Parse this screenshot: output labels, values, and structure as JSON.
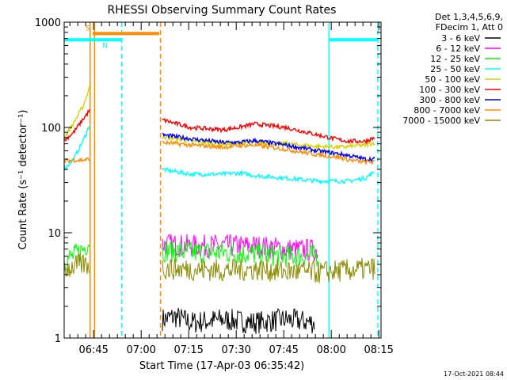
{
  "chart_data": {
    "type": "line",
    "title": "RHESSI Observing Summary Count Rates",
    "xlabel": "Start Time (17-Apr-03 06:35:42)",
    "ylabel": "Count Rate (s⁻¹ detector⁻¹)",
    "yscale": "log",
    "ylim": [
      1,
      1000
    ],
    "xlim_minutes": [
      0,
      100
    ],
    "x_tick_labels": [
      {
        "label": "06:45",
        "minute": 9.3
      },
      {
        "label": "07:00",
        "minute": 24.3
      },
      {
        "label": "07:15",
        "minute": 39.3
      },
      {
        "label": "07:30",
        "minute": 54.3
      },
      {
        "label": "07:45",
        "minute": 69.3
      },
      {
        "label": "08:00",
        "minute": 84.3
      },
      {
        "label": "08:15",
        "minute": 99.3
      }
    ],
    "y_tick_labels": [
      {
        "label": "1",
        "value": 1
      },
      {
        "label": "10",
        "value": 10
      },
      {
        "label": "100",
        "value": 100
      },
      {
        "label": "1000",
        "value": 1000
      }
    ],
    "legend_header": [
      "Det 1,3,4,5,6,9,",
      "FDecim 1, Att 0"
    ],
    "legend_placement": "right",
    "series": [
      {
        "name": "3 - 6 keV",
        "color": "#000000",
        "segments": [
          {
            "x": [
              31,
              35,
              40,
              50,
              60,
              70,
              79
            ],
            "y": [
              1.5,
              1.6,
              1.4,
              1.5,
              1.4,
              1.5,
              1.4
            ],
            "noisy": true
          }
        ]
      },
      {
        "name": "6 - 12 keV",
        "color": "#ff00ff",
        "segments": [
          {
            "x": [
              31,
              40,
              50,
              60,
              70,
              80
            ],
            "y": [
              7.8,
              7.5,
              7.5,
              7.5,
              7.0,
              6.8
            ],
            "noisy": true
          }
        ]
      },
      {
        "name": "12 - 25 keV",
        "color": "#00ff00",
        "segments": [
          {
            "x": [
              0,
              3,
              6,
              8
            ],
            "y": [
              5.5,
              6.0,
              7.0,
              8.5
            ],
            "noisy": true
          },
          {
            "x": [
              31,
              40,
              50,
              60,
              70,
              80
            ],
            "y": [
              6.8,
              6.5,
              6.5,
              6.3,
              6.0,
              6.0
            ],
            "noisy": true
          }
        ]
      },
      {
        "name": "25 - 50 keV",
        "color": "#00ffff",
        "segments": [
          {
            "x": [
              0,
              3,
              6,
              8
            ],
            "y": [
              40,
              50,
              75,
              105
            ]
          },
          {
            "x": [
              31,
              40,
              50,
              55,
              60,
              70,
              80,
              87,
              90,
              95,
              98
            ],
            "y": [
              40,
              36,
              36,
              37,
              35,
              33,
              31,
              31,
              31,
              33,
              38
            ]
          }
        ]
      },
      {
        "name": "50 - 100 keV",
        "color": "#d4d400",
        "segments": [
          {
            "x": [
              0,
              3,
              6,
              8
            ],
            "y": [
              80,
              110,
              160,
              240
            ]
          },
          {
            "x": [
              31,
              40,
              50,
              55,
              60,
              70,
              80,
              87,
              90,
              95,
              98
            ],
            "y": [
              82,
              74,
              70,
              70,
              72,
              70,
              66,
              65,
              66,
              68,
              72
            ]
          }
        ]
      },
      {
        "name": "100 - 300 keV",
        "color": "#ff0000",
        "segments": [
          {
            "x": [
              0,
              3,
              6,
              8
            ],
            "y": [
              75,
              90,
              120,
              145
            ]
          },
          {
            "x": [
              31,
              40,
              50,
              55,
              60,
              70,
              80,
              87,
              90,
              95,
              98
            ],
            "y": [
              118,
              100,
              95,
              100,
              108,
              100,
              85,
              76,
              74,
              74,
              80
            ]
          }
        ]
      },
      {
        "name": "300 - 800 keV",
        "color": "#0000ff",
        "segments": [
          {
            "x": [
              31,
              40,
              50,
              55,
              60,
              70,
              80,
              87,
              90,
              95,
              98
            ],
            "y": [
              85,
              78,
              72,
              72,
              75,
              68,
              60,
              56,
              54,
              50,
              50
            ]
          }
        ]
      },
      {
        "name": "800 - 7000 keV",
        "color": "#ff8c00",
        "segments": [
          {
            "x": [
              0,
              3,
              6,
              8
            ],
            "y": [
              48,
              49,
              49,
              50
            ]
          },
          {
            "x": [
              31,
              40,
              50,
              55,
              60,
              70,
              80,
              87,
              90,
              95,
              98
            ],
            "y": [
              72,
              68,
              65,
              67,
              68,
              62,
              55,
              52,
              49,
              47,
              47
            ]
          }
        ]
      },
      {
        "name": "7000 - 15000 keV",
        "color": "#8b8b00",
        "segments": [
          {
            "x": [
              0,
              3,
              6,
              8
            ],
            "y": [
              4.5,
              4.8,
              5.0,
              5.0
            ],
            "noisy": true
          },
          {
            "x": [
              31,
              40,
              50,
              60,
              70,
              80,
              90,
              98
            ],
            "y": [
              4.6,
              4.5,
              4.4,
              4.5,
              4.3,
              4.2,
              4.4,
              4.6
            ],
            "noisy": true
          }
        ]
      }
    ],
    "flag_bars": [
      {
        "label": "S",
        "color": "#ff8c00",
        "label_color": "#ff8c00",
        "x": [
          9,
          30
        ],
        "y": 780
      },
      {
        "label": "N",
        "color": "#00ffff",
        "label_color": "#00ffff",
        "x": [
          0,
          18
        ],
        "y": 680
      },
      {
        "label": "",
        "color": "#00ffff",
        "label_color": "#00ffff",
        "x": [
          83.5,
          99
        ],
        "y": 680
      }
    ],
    "markers": [
      {
        "x": 8.2,
        "color": "#ff8c00",
        "style": "solid"
      },
      {
        "x": 9.6,
        "color": "#ff8c00",
        "style": "solid"
      },
      {
        "x": 30.4,
        "color": "#ff8c00",
        "style": "dashed"
      },
      {
        "x": 18.2,
        "color": "#00ffff",
        "style": "dashed"
      },
      {
        "x": 83.6,
        "color": "#00ffff",
        "style": "solid"
      },
      {
        "x": 99.0,
        "color": "#00ffff",
        "style": "dashed"
      }
    ],
    "grid": false
  },
  "footer": {
    "date_stamp": "17-Oct-2021 08:44"
  }
}
